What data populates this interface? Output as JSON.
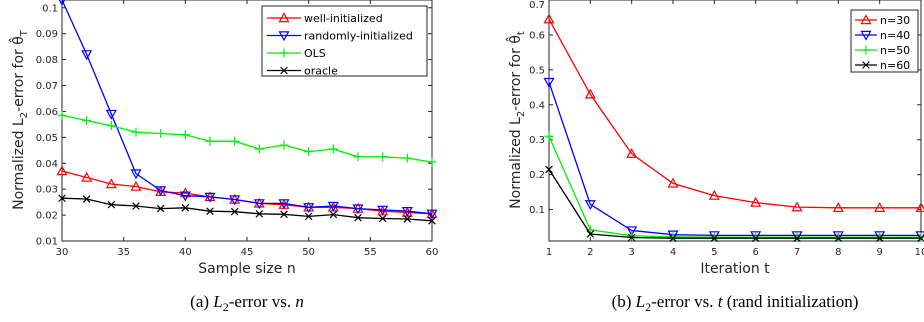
{
  "chart_data": [
    {
      "type": "line",
      "caption": "(a) L2-error vs. n",
      "xlabel": "Sample size n",
      "ylabel": "Normalized L2-error for θ̂T",
      "xlim": [
        30,
        60
      ],
      "ylim": [
        0.01,
        0.103
      ],
      "xticks": [
        30,
        35,
        40,
        45,
        50,
        55,
        60
      ],
      "yticks": [
        0.01,
        0.02,
        0.03,
        0.04,
        0.05,
        0.06,
        0.07,
        0.08,
        0.09,
        0.1
      ],
      "ytick_labels": [
        "0.01",
        "0.02",
        "0.03",
        "0.04",
        "0.05",
        "0.06",
        "0.07",
        "0.08",
        "0.09",
        "0.1"
      ],
      "legend_position": "top-right",
      "x": [
        30,
        32,
        34,
        36,
        38,
        40,
        42,
        44,
        46,
        48,
        50,
        52,
        54,
        56,
        58,
        60
      ],
      "series": [
        {
          "name": "well-initialized",
          "color": "#ff0000",
          "marker": "triangle-up",
          "values": [
            0.037,
            0.0345,
            0.032,
            0.031,
            0.029,
            0.0285,
            0.027,
            0.026,
            0.0245,
            0.024,
            0.023,
            0.023,
            0.0225,
            0.0215,
            0.021,
            0.0205
          ]
        },
        {
          "name": "randomly-initialized",
          "color": "#0000ff",
          "marker": "triangle-down",
          "values": [
            0.103,
            0.082,
            0.059,
            0.036,
            0.0295,
            0.0275,
            0.027,
            0.026,
            0.0245,
            0.0245,
            0.023,
            0.0235,
            0.0225,
            0.022,
            0.0215,
            0.0205
          ]
        },
        {
          "name": "OLS",
          "color": "#00ee00",
          "marker": "plus",
          "values": [
            0.0585,
            0.0565,
            0.0545,
            0.052,
            0.0515,
            0.051,
            0.0485,
            0.0485,
            0.0455,
            0.047,
            0.0445,
            0.0455,
            0.0425,
            0.0425,
            0.042,
            0.0405
          ]
        },
        {
          "name": "oracle",
          "color": "#000000",
          "marker": "x",
          "values": [
            0.0265,
            0.0262,
            0.024,
            0.0235,
            0.0225,
            0.0228,
            0.0215,
            0.0213,
            0.0205,
            0.0203,
            0.0195,
            0.0202,
            0.019,
            0.0187,
            0.0185,
            0.0178
          ]
        }
      ]
    },
    {
      "type": "line",
      "caption": "(b) L2-error vs. t (rand initialization)",
      "xlabel": "Iteration t",
      "ylabel": "Normalized L2-error for θ̂t",
      "xlim": [
        1,
        10
      ],
      "ylim": [
        0.01,
        0.7
      ],
      "xticks": [
        1,
        2,
        3,
        4,
        5,
        6,
        7,
        8,
        9,
        10
      ],
      "yticks": [
        0.1,
        0.2,
        0.3,
        0.4,
        0.5,
        0.6,
        0.7
      ],
      "ytick_labels": [
        "0.1",
        "0.2",
        "0.3",
        "0.4",
        "0.5",
        "0.6",
        "0.7"
      ],
      "legend_position": "top-right",
      "x": [
        1,
        2,
        3,
        4,
        5,
        6,
        7,
        8,
        9,
        10
      ],
      "series": [
        {
          "name": "n=30",
          "color": "#ff0000",
          "marker": "triangle-up",
          "values": [
            0.645,
            0.43,
            0.26,
            0.175,
            0.14,
            0.12,
            0.107,
            0.105,
            0.105,
            0.105
          ]
        },
        {
          "name": "n=40",
          "color": "#0000ff",
          "marker": "triangle-down",
          "values": [
            0.465,
            0.115,
            0.04,
            0.028,
            0.026,
            0.026,
            0.026,
            0.026,
            0.026,
            0.026
          ]
        },
        {
          "name": "n=50",
          "color": "#00ee00",
          "marker": "plus",
          "values": [
            0.31,
            0.042,
            0.025,
            0.022,
            0.021,
            0.021,
            0.021,
            0.021,
            0.021,
            0.021
          ]
        },
        {
          "name": "n=60",
          "color": "#000000",
          "marker": "x",
          "values": [
            0.215,
            0.03,
            0.02,
            0.018,
            0.018,
            0.018,
            0.018,
            0.018,
            0.018,
            0.018
          ]
        }
      ]
    }
  ]
}
